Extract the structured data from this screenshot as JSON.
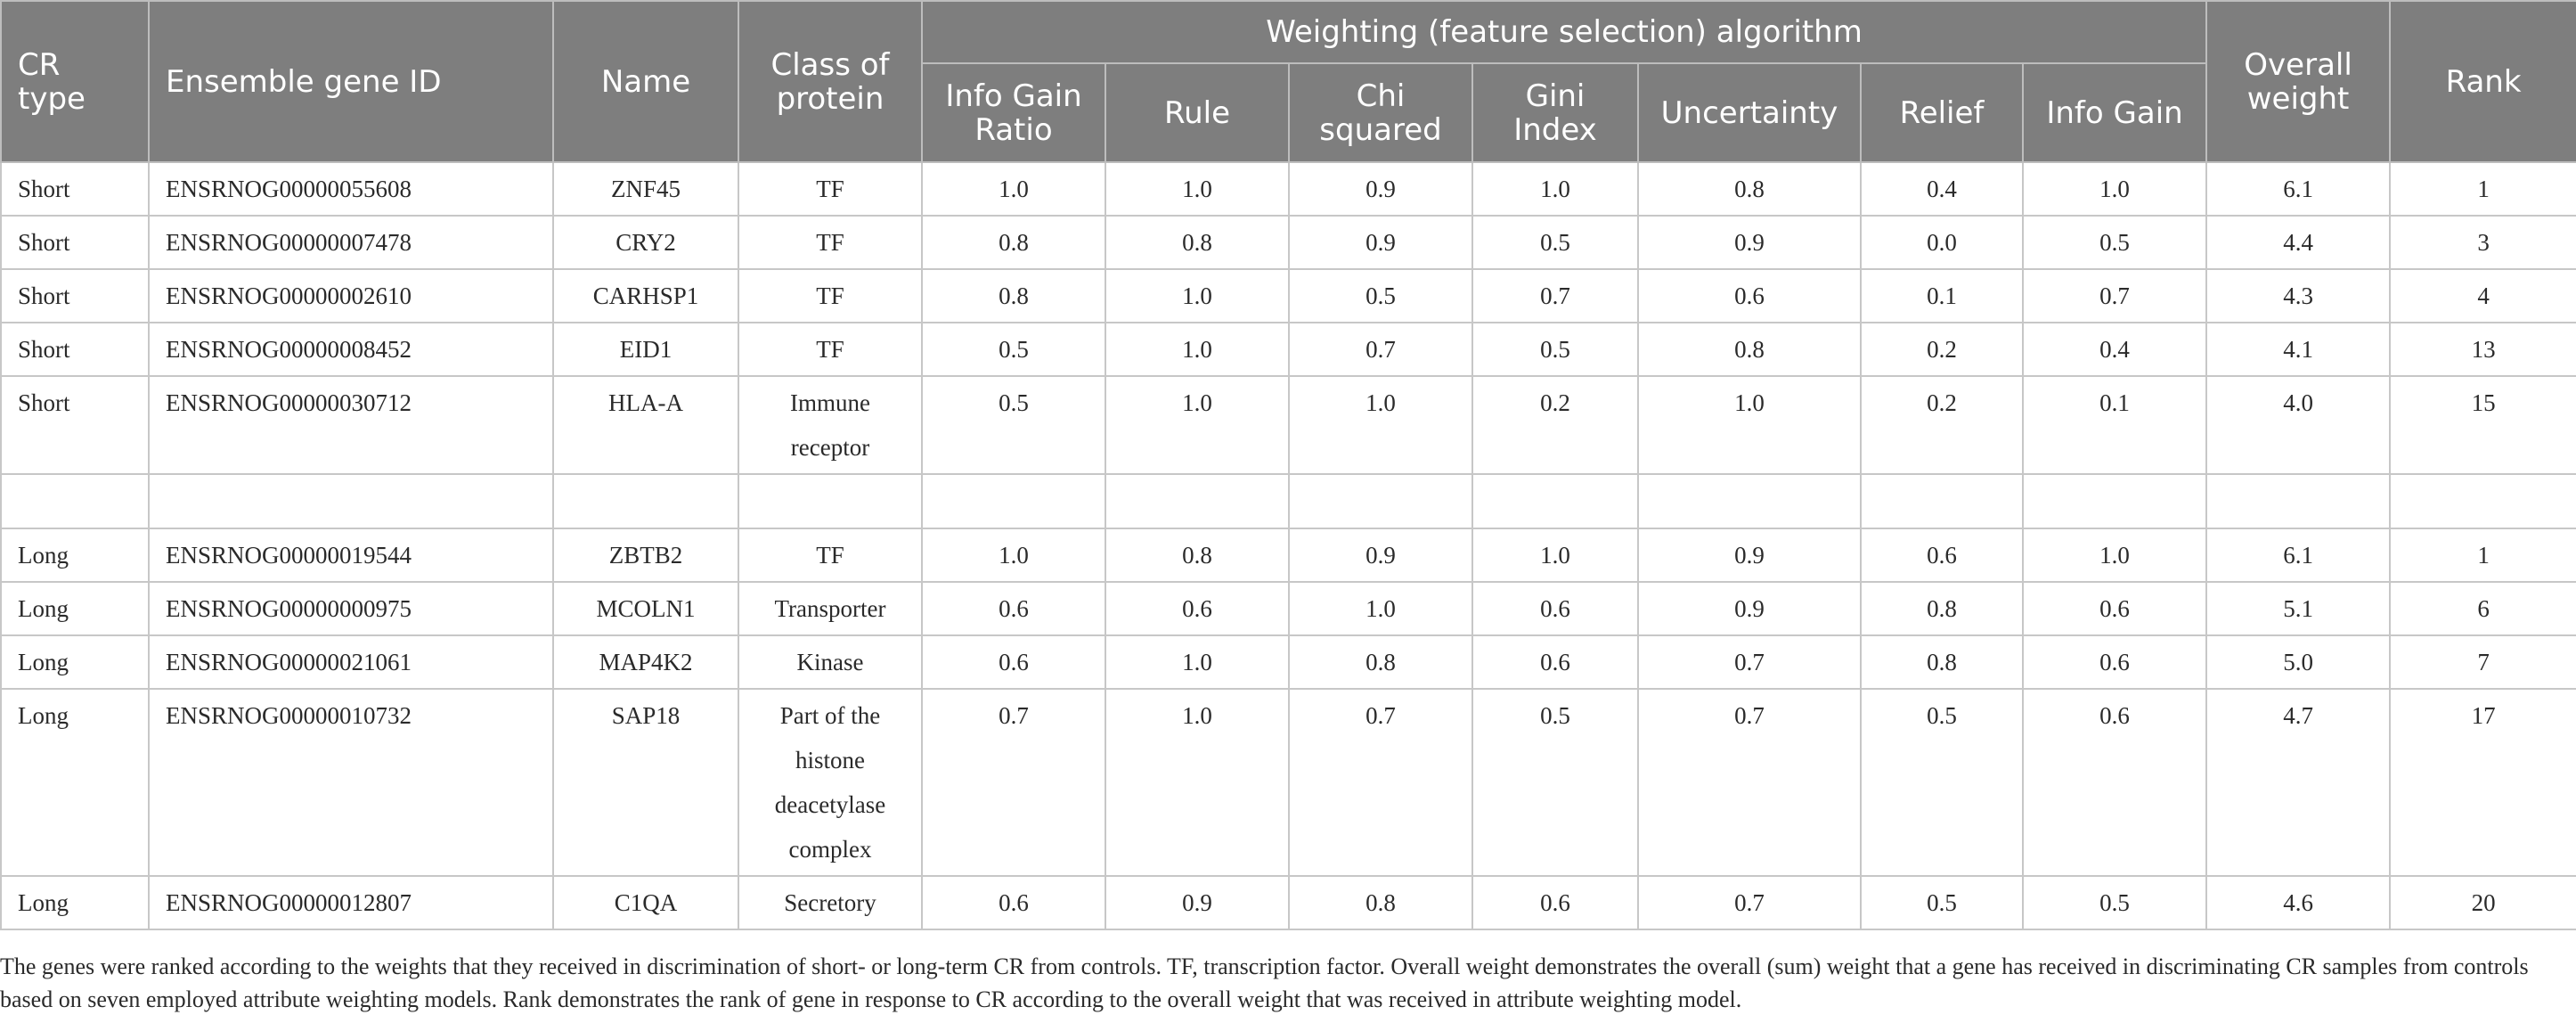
{
  "header": {
    "group_label": "Weighting (feature selection) algorithm",
    "cr_type": "CR type",
    "gene_id": "Ensemble gene ID",
    "name": "Name",
    "class": "Class of protein",
    "overall": "Overall weight",
    "rank": "Rank",
    "algorithms": [
      "Info Gain Ratio",
      "Rule",
      "Chi squared",
      "Gini Index",
      "Uncertainty",
      "Relief",
      "Info Gain"
    ]
  },
  "rows": [
    {
      "cr_type": "Short",
      "gene_id": "ENSRNOG00000055608",
      "name": "ZNF45",
      "class": "TF",
      "w": [
        "1.0",
        "1.0",
        "0.9",
        "1.0",
        "0.8",
        "0.4",
        "1.0"
      ],
      "overall": "6.1",
      "rank": "1"
    },
    {
      "cr_type": "Short",
      "gene_id": "ENSRNOG00000007478",
      "name": "CRY2",
      "class": "TF",
      "w": [
        "0.8",
        "0.8",
        "0.9",
        "0.5",
        "0.9",
        "0.0",
        "0.5"
      ],
      "overall": "4.4",
      "rank": "3"
    },
    {
      "cr_type": "Short",
      "gene_id": "ENSRNOG00000002610",
      "name": "CARHSP1",
      "class": "TF",
      "w": [
        "0.8",
        "1.0",
        "0.5",
        "0.7",
        "0.6",
        "0.1",
        "0.7"
      ],
      "overall": "4.3",
      "rank": "4"
    },
    {
      "cr_type": "Short",
      "gene_id": "ENSRNOG00000008452",
      "name": "EID1",
      "class": "TF",
      "w": [
        "0.5",
        "1.0",
        "0.7",
        "0.5",
        "0.8",
        "0.2",
        "0.4"
      ],
      "overall": "4.1",
      "rank": "13"
    },
    {
      "cr_type": "Short",
      "gene_id": "ENSRNOG00000030712",
      "name": "HLA-A",
      "class": "Immune receptor",
      "w": [
        "0.5",
        "1.0",
        "1.0",
        "0.2",
        "1.0",
        "0.2",
        "0.1"
      ],
      "overall": "4.0",
      "rank": "15"
    },
    {
      "cr_type": "",
      "gene_id": "",
      "name": "",
      "class": "",
      "w": [
        "",
        "",
        "",
        "",
        "",
        "",
        ""
      ],
      "overall": "",
      "rank": ""
    },
    {
      "cr_type": "Long",
      "gene_id": "ENSRNOG00000019544",
      "name": "ZBTB2",
      "class": "TF",
      "w": [
        "1.0",
        "0.8",
        "0.9",
        "1.0",
        "0.9",
        "0.6",
        "1.0"
      ],
      "overall": "6.1",
      "rank": "1"
    },
    {
      "cr_type": "Long",
      "gene_id": "ENSRNOG00000000975",
      "name": "MCOLN1",
      "class": "Transporter",
      "w": [
        "0.6",
        "0.6",
        "1.0",
        "0.6",
        "0.9",
        "0.8",
        "0.6"
      ],
      "overall": "5.1",
      "rank": "6"
    },
    {
      "cr_type": "Long",
      "gene_id": "ENSRNOG00000021061",
      "name": "MAP4K2",
      "class": "Kinase",
      "w": [
        "0.6",
        "1.0",
        "0.8",
        "0.6",
        "0.7",
        "0.8",
        "0.6"
      ],
      "overall": "5.0",
      "rank": "7"
    },
    {
      "cr_type": "Long",
      "gene_id": "ENSRNOG00000010732",
      "name": "SAP18",
      "class": "Part of the histone deacetylase complex",
      "w": [
        "0.7",
        "1.0",
        "0.7",
        "0.5",
        "0.7",
        "0.5",
        "0.6"
      ],
      "overall": "4.7",
      "rank": "17"
    },
    {
      "cr_type": "Long",
      "gene_id": "ENSRNOG00000012807",
      "name": "C1QA",
      "class": "Secretory",
      "w": [
        "0.6",
        "0.9",
        "0.8",
        "0.6",
        "0.7",
        "0.5",
        "0.5"
      ],
      "overall": "4.6",
      "rank": "20"
    }
  ],
  "footnote": "The genes were ranked according to the weights that they received in discrimination of short- or long-term CR from controls. TF, transcription factor. Overall weight demonstrates the overall (sum) weight that a gene has received in discriminating CR samples from controls based on seven employed attribute weighting models. Rank demonstrates the rank of gene in response to CR according to the overall weight that was received in attribute weighting model."
}
